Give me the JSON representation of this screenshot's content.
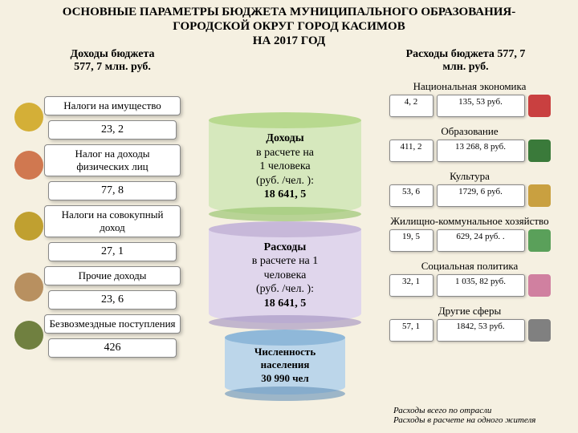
{
  "title_l1": "ОСНОВНЫЕ ПАРАМЕТРЫ БЮДЖЕТА МУНИЦИПАЛЬНОГО ОБРАЗОВАНИЯ-",
  "title_l2": "ГОРОДСКОЙ ОКРУГ ГОРОД КАСИМОВ",
  "title_l3": "НА 2017 ГОД",
  "income_head_l1": "Доходы бюджета",
  "income_head_l2": "577, 7 млн. руб.",
  "expense_head_l1": "Расходы бюджета 577, 7",
  "expense_head_l2": "млн. руб.",
  "left": [
    {
      "label": "Налоги на имущество",
      "value": "23, 2"
    },
    {
      "label": "Налог на доходы физических лиц",
      "value": "77, 8"
    },
    {
      "label": "Налоги на совокупный доход",
      "value": "27, 1"
    },
    {
      "label": "Прочие доходы",
      "value": "23, 6"
    },
    {
      "label": "Безвозмездные поступления",
      "value": "426"
    }
  ],
  "center": {
    "income_title": "Доходы",
    "income_sub1": "в расчете на",
    "income_sub2": "1 человека",
    "income_sub3": "(руб. /чел. ):",
    "income_val": "18 641, 5",
    "expense_title": "Расходы",
    "expense_sub1": "в расчете на 1",
    "expense_sub2": "человека",
    "expense_sub3": "(руб. /чел. ):",
    "expense_val": "18 641, 5",
    "pop_title": "Численность",
    "pop_sub": "населения",
    "pop_val": "30 990 чел",
    "colors": {
      "income_top": "#b8d98f",
      "income_body": "#d6e8bd",
      "income_bot": "#8fbf63",
      "expense_top": "#c7b8d9",
      "expense_body": "#e0d6ec",
      "expense_bot": "#a08fc0",
      "pop_top": "#8fb8d9",
      "pop_body": "#bcd6ea",
      "pop_bot": "#6390b8"
    }
  },
  "right": [
    {
      "title": "Национальная экономика",
      "v1": "4, 2",
      "v2": "135, 53  руб.",
      "icon": "#c94040"
    },
    {
      "title": "Образование",
      "v1": "411, 2",
      "v2": "13 268, 8 руб.",
      "icon": "#3a7a3a"
    },
    {
      "title": "Культура",
      "v1": "53, 6",
      "v2": "1729, 6 руб.",
      "icon": "#c9a040"
    },
    {
      "title": "Жилищно-коммунальное хозяйство",
      "v1": "19, 5",
      "v2": "629, 24 руб. .",
      "icon": "#5aa05a"
    },
    {
      "title": "Социальная политика",
      "v1": "32, 1",
      "v2": "1 035, 82 руб.",
      "icon": "#d080a0"
    },
    {
      "title": "Другие сферы",
      "v1": "57, 1",
      "v2": "1842, 53  руб.",
      "icon": "#808080"
    }
  ],
  "footnote_l1": "Расходы всего по отрасли",
  "footnote_l2": "Расходы в расчете на одного жителя"
}
